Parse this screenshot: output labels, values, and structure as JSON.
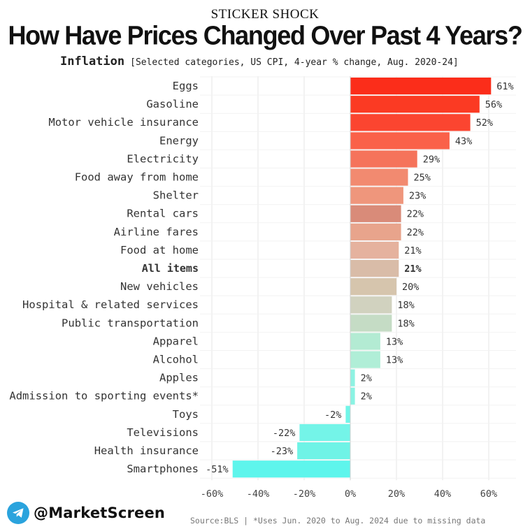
{
  "kicker": "STICKER SHOCK",
  "headline": "How Have Prices Changed Over Past 4 Years?",
  "subtitle": {
    "strong": "Inflation",
    "detail": "[Selected categories, US CPI, 4-year % change, Aug. 2020-24]"
  },
  "chart_data": {
    "type": "bar",
    "orientation": "horizontal",
    "unit": "%",
    "categories": [
      "Eggs",
      "Gasoline",
      "Motor vehicle insurance",
      "Energy",
      "Electricity",
      "Food away from home",
      "Shelter",
      "Rental cars",
      "Airline fares",
      "Food at home",
      "All items",
      "New vehicles",
      "Hospital & related services",
      "Public transportation",
      "Apparel",
      "Alcohol",
      "Apples",
      "Admission to sporting events*",
      "Toys",
      "Televisions",
      "Health insurance",
      "Smartphones"
    ],
    "values": [
      61,
      56,
      52,
      43,
      29,
      25,
      23,
      22,
      22,
      21,
      21,
      20,
      18,
      18,
      13,
      13,
      2,
      2,
      -2,
      -22,
      -23,
      -51
    ],
    "value_labels": [
      "61%",
      "56%",
      "52%",
      "43%",
      "29%",
      "25%",
      "23%",
      "22%",
      "22%",
      "21%",
      "21%",
      "20%",
      "18%",
      "18%",
      "13%",
      "13%",
      "2%",
      "2%",
      "-2%",
      "-22%",
      "-23%",
      "-51%"
    ],
    "colors": [
      "#fb2d1a",
      "#fb3a23",
      "#fb4530",
      "#fa6149",
      "#f5735b",
      "#f28a70",
      "#ef967c",
      "#d98b79",
      "#e8a48c",
      "#e5b29e",
      "#d9bca8",
      "#d6c5ad",
      "#d1d2bf",
      "#c5dcc5",
      "#b3ebd3",
      "#b0eed7",
      "#8ef2e2",
      "#8af3e3",
      "#70f5e8",
      "#74f4e8",
      "#6ff3e6",
      "#5ef5ec"
    ],
    "highlight_category": "All items",
    "xlim": [
      -60,
      65
    ],
    "xticks": [
      -60,
      -40,
      -20,
      0,
      20,
      40,
      60
    ],
    "xtick_labels": [
      "-60%",
      "-40%",
      "-20%",
      "0%",
      "20%",
      "40%",
      "60%"
    ],
    "grid": "vertical"
  },
  "footer": {
    "handle": "@MarketScreen",
    "source": "Source:BLS | *Uses Jun. 2020 to Aug. 2024 due to missing data"
  }
}
